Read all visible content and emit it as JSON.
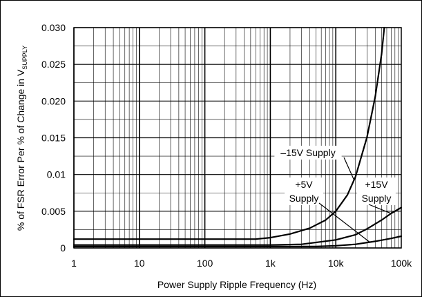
{
  "chart_data": {
    "type": "line",
    "title": "",
    "xlabel": "Power Supply Ripple Frequency (Hz)",
    "ylabel_main": "% of FSR Error Per % of Change in V",
    "ylabel_sub": "SUPPLY",
    "x_scale": "log",
    "xlim": [
      1,
      100000
    ],
    "ylim": [
      0,
      0.03
    ],
    "grid": true,
    "x_ticks": [
      {
        "value": 1,
        "label": "1"
      },
      {
        "value": 10,
        "label": "10"
      },
      {
        "value": 100,
        "label": "100"
      },
      {
        "value": 1000,
        "label": "1k"
      },
      {
        "value": 10000,
        "label": "10k"
      },
      {
        "value": 100000,
        "label": "100k"
      }
    ],
    "y_ticks": [
      {
        "value": 0,
        "label": "0"
      },
      {
        "value": 0.005,
        "label": "0.005"
      },
      {
        "value": 0.01,
        "label": "0.01"
      },
      {
        "value": 0.015,
        "label": "0.015"
      },
      {
        "value": 0.02,
        "label": "0.020"
      },
      {
        "value": 0.025,
        "label": "0.025"
      },
      {
        "value": 0.03,
        "label": "0.030"
      }
    ],
    "series": [
      {
        "name": "–15V Supply",
        "x": [
          1,
          100,
          600,
          1000,
          2000,
          4000,
          7000,
          10000,
          15000,
          20000,
          30000,
          40000,
          50000,
          55000
        ],
        "y": [
          0.0012,
          0.0012,
          0.0012,
          0.0014,
          0.0019,
          0.0027,
          0.0038,
          0.005,
          0.0072,
          0.0097,
          0.0151,
          0.0206,
          0.0264,
          0.03
        ]
      },
      {
        "name": "+15V Supply",
        "x": [
          1,
          1000,
          3000,
          10000,
          20000,
          30000,
          50000,
          70000,
          100000
        ],
        "y": [
          0.0004,
          0.0004,
          0.0005,
          0.0011,
          0.0018,
          0.0026,
          0.0038,
          0.0047,
          0.0055
        ]
      },
      {
        "name": "+5V Supply",
        "x": [
          1,
          5000,
          10000,
          20000,
          40000,
          70000,
          100000
        ],
        "y": [
          0.0002,
          0.0002,
          0.0003,
          0.0005,
          0.0009,
          0.0013,
          0.0016
        ]
      }
    ],
    "annotations": [
      {
        "line1": "–15V Supply",
        "line2": ""
      },
      {
        "line1": "+5V",
        "line2": "Supply"
      },
      {
        "line1": "+15V",
        "line2": "Supply"
      }
    ]
  }
}
